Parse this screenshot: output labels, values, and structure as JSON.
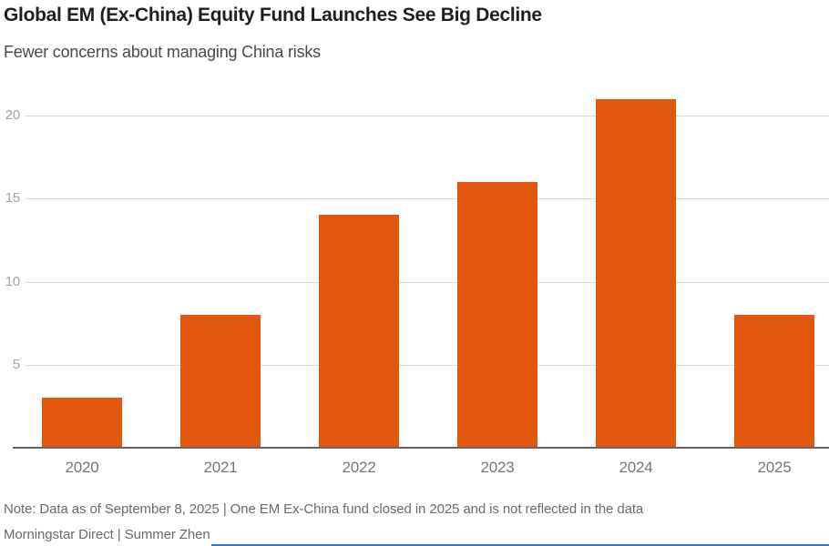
{
  "header": {
    "title": "Global EM (Ex-China) Equity Fund Launches See Big Decline",
    "subtitle": "Fewer concerns about managing China risks"
  },
  "chart_data": {
    "type": "bar",
    "categories": [
      "2020",
      "2021",
      "2022",
      "2023",
      "2024",
      "2025"
    ],
    "values": [
      3,
      8,
      14,
      16,
      21,
      8
    ],
    "title": "Global EM (Ex-China) Equity Fund Launches See Big Decline",
    "subtitle": "Fewer concerns about managing China risks",
    "xlabel": "",
    "ylabel": "",
    "yticks": [
      5,
      10,
      15,
      20
    ],
    "ylim": [
      0,
      22
    ],
    "grid": true,
    "legend_position": "none",
    "bar_color": "#e2570d",
    "gridline_color": "#d8d8d8",
    "axis_line_color": "#63666b"
  },
  "footer": {
    "note": "Note: Data as of September 8, 2025 | One EM Ex-China fund closed in 2025 and is not reflected in the data",
    "source": "Morningstar Direct | Summer Zhen",
    "accent_line_color": "#3575e0"
  }
}
